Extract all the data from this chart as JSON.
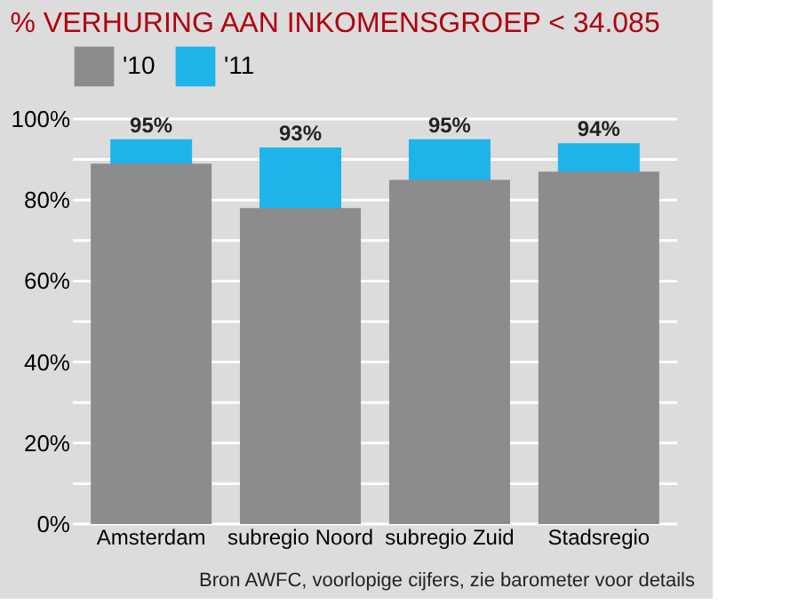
{
  "chart_data": {
    "type": "bar",
    "title": "% VERHURING AAN INKOMENSGROEP < 34.085",
    "categories": [
      "Amsterdam",
      "subregio Noord",
      "subregio Zuid",
      "Stadsregio"
    ],
    "series": [
      {
        "name": "'10",
        "color": "#8c8c8c",
        "values": [
          89,
          78,
          85,
          87
        ]
      },
      {
        "name": "'11",
        "color": "#1eb4ea",
        "values": [
          95,
          93,
          95,
          94
        ],
        "value_labels": [
          "95%",
          "93%",
          "95%",
          "94%"
        ]
      }
    ],
    "ylim": [
      0,
      100
    ],
    "yticks": [
      {
        "value": 0,
        "label": "0%"
      },
      {
        "value": 10,
        "label": null
      },
      {
        "value": 20,
        "label": "20%"
      },
      {
        "value": 30,
        "label": null
      },
      {
        "value": 40,
        "label": "40%"
      },
      {
        "value": 50,
        "label": null
      },
      {
        "value": 60,
        "label": "60%"
      },
      {
        "value": 70,
        "label": null
      },
      {
        "value": 80,
        "label": "80%"
      },
      {
        "value": 90,
        "label": null
      },
      {
        "value": 100,
        "label": "100%"
      }
    ],
    "grid": "y",
    "legend": "top",
    "annotations": [
      "Bron AWFC, voorlopige cijfers, zie barometer voor details"
    ]
  }
}
